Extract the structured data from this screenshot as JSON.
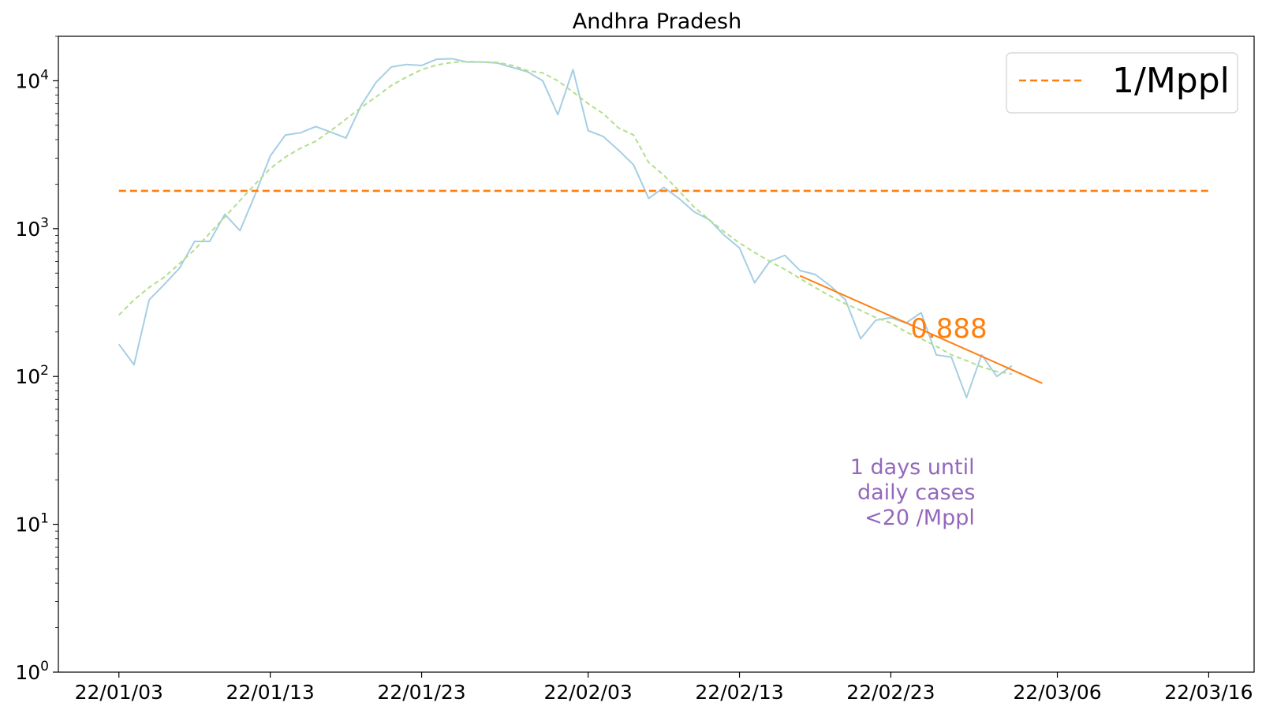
{
  "chart_data": {
    "type": "line",
    "title": "Andhra Pradesh",
    "xlabel": "",
    "ylabel": "",
    "yscale": "log",
    "ylim": [
      1,
      20000
    ],
    "xlim": [
      "2021-12-30",
      "2022-03-19"
    ],
    "x_ticks": [
      {
        "date": "2022-01-03",
        "label": "22/01/03"
      },
      {
        "date": "2022-01-13",
        "label": "22/01/13"
      },
      {
        "date": "2022-01-23",
        "label": "22/01/23"
      },
      {
        "date": "2022-02-03",
        "label": "22/02/03"
      },
      {
        "date": "2022-02-13",
        "label": "22/02/13"
      },
      {
        "date": "2022-02-23",
        "label": "22/02/23"
      },
      {
        "date": "2022-03-06",
        "label": "22/03/06"
      },
      {
        "date": "2022-03-16",
        "label": "22/03/16"
      }
    ],
    "y_ticks": [
      {
        "value": 1,
        "base": "10",
        "exp": "0"
      },
      {
        "value": 10,
        "base": "10",
        "exp": "1"
      },
      {
        "value": 100,
        "base": "10",
        "exp": "2"
      },
      {
        "value": 1000,
        "base": "10",
        "exp": "3"
      },
      {
        "value": 10000,
        "base": "10",
        "exp": "4"
      }
    ],
    "grid": false,
    "legend": {
      "position": "top-right",
      "entries": [
        {
          "label": "1/Mppl",
          "series": "threshold"
        }
      ]
    },
    "start_date": "2022-01-03",
    "series": [
      {
        "key": "daily",
        "color": "#a6cee3",
        "style": "solid",
        "values": [
          165,
          120,
          330,
          420,
          540,
          820,
          820,
          1250,
          970,
          1700,
          3100,
          4300,
          4450,
          4900,
          4500,
          4100,
          6800,
          9800,
          12400,
          12900,
          12700,
          14000,
          14100,
          13400,
          13400,
          13200,
          12300,
          11500,
          10000,
          5900,
          11900,
          4600,
          4200,
          3400,
          2700,
          1600,
          1900,
          1600,
          1300,
          1150,
          900,
          740,
          430,
          600,
          660,
          520,
          490,
          410,
          330,
          180,
          240,
          250,
          230,
          270,
          140,
          135,
          72,
          140,
          100,
          118
        ]
      },
      {
        "key": "smoothed",
        "color": "#b2df8a",
        "style": "dashed",
        "values": [
          260,
          330,
          400,
          470,
          580,
          720,
          930,
          1200,
          1550,
          2000,
          2550,
          3050,
          3500,
          3900,
          4600,
          5500,
          6600,
          7800,
          9300,
          10600,
          11900,
          12800,
          13300,
          13500,
          13400,
          13300,
          12700,
          11700,
          11300,
          10000,
          8400,
          7000,
          6000,
          4800,
          4300,
          2800,
          2300,
          1800,
          1400,
          1150,
          950,
          800,
          690,
          600,
          530,
          460,
          400,
          350,
          310,
          280,
          250,
          230,
          200,
          180,
          160,
          140,
          128,
          116,
          108,
          104
        ]
      },
      {
        "key": "threshold",
        "name": "1/Mppl",
        "color": "#ff7f0e",
        "style": "dashed",
        "x_start": "2022-01-03",
        "x_end": "2022-03-16",
        "value": 1800
      },
      {
        "key": "trend",
        "color": "#ff7f0e",
        "style": "solid",
        "points": [
          {
            "x": "2022-02-17",
            "y": 480
          },
          {
            "x": "2022-03-05",
            "y": 90
          }
        ]
      }
    ],
    "annotations": {
      "rate": "0.888",
      "rate_color": "#ff7f0e",
      "forecast_lines": [
        "1 days until",
        "daily cases",
        "<20 /Mppl"
      ],
      "forecast_color": "#9467bd"
    }
  }
}
